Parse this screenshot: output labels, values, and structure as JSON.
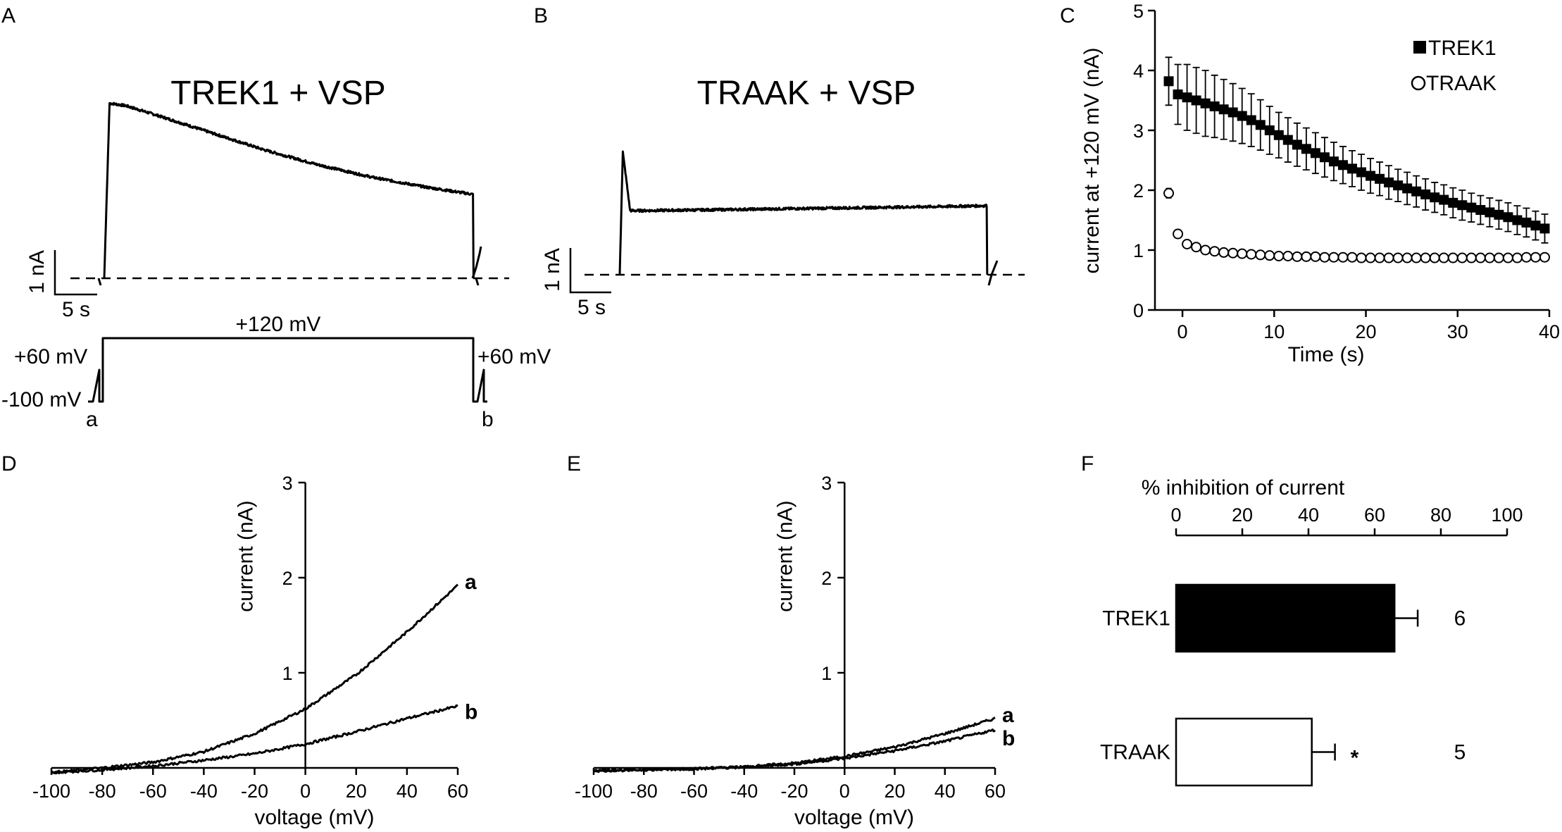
{
  "chart_data": [
    {
      "panel": "A",
      "type": "line",
      "title": "TREK1 + VSP",
      "scale_bar": {
        "current": "1 nA",
        "time": "5 s"
      },
      "protocol": {
        "label_main": "+120 mV",
        "label_pre": "+60 mV",
        "label_post": "+60 mV",
        "label_hold": "-100 mV",
        "marker_a": "a",
        "marker_b": "b"
      },
      "trace": {
        "t_s": [
          0,
          0.5,
          2,
          5,
          10,
          15,
          20,
          25,
          30,
          34.5
        ],
        "i_nA": [
          0,
          3.55,
          3.5,
          3.3,
          2.95,
          2.6,
          2.3,
          2.05,
          1.85,
          1.7
        ]
      }
    },
    {
      "panel": "B",
      "type": "line",
      "title": "TRAAK + VSP",
      "scale_bar": {
        "current": "1 nA",
        "time": "5 s"
      },
      "trace": {
        "t_s": [
          0,
          0.3,
          1,
          2,
          10,
          20,
          30,
          35.5
        ],
        "i_nA": [
          0,
          2.5,
          1.3,
          1.3,
          1.32,
          1.35,
          1.38,
          1.4
        ]
      }
    },
    {
      "panel": "C",
      "type": "scatter",
      "xlabel": "Time (s)",
      "ylabel": "current at +120 mV (nA)",
      "xlim": [
        -3,
        40
      ],
      "ylim": [
        0,
        5
      ],
      "xticks": [
        "0",
        "10",
        "20",
        "30",
        "40"
      ],
      "yticks": [
        "0",
        "1",
        "2",
        "3",
        "4",
        "5"
      ],
      "series": [
        {
          "name": "TREK1",
          "marker": "filled-square",
          "x": [
            -1.5,
            -0.5,
            0.5,
            1.5,
            2.5,
            3.5,
            4.5,
            5.5,
            6.5,
            7.5,
            8.5,
            9.5,
            10.5,
            11.5,
            12.5,
            13.5,
            14.5,
            15.5,
            16.5,
            17.5,
            18.5,
            19.5,
            20.5,
            21.5,
            22.5,
            23.5,
            24.5,
            25.5,
            26.5,
            27.5,
            28.5,
            29.5,
            30.5,
            31.5,
            32.5,
            33.5,
            34.5,
            35.5,
            36.5,
            37.5,
            38.5,
            39.5
          ],
          "y": [
            3.82,
            3.6,
            3.55,
            3.5,
            3.45,
            3.4,
            3.35,
            3.3,
            3.24,
            3.17,
            3.09,
            3.0,
            2.92,
            2.84,
            2.76,
            2.69,
            2.62,
            2.55,
            2.48,
            2.42,
            2.36,
            2.3,
            2.24,
            2.19,
            2.13,
            2.08,
            2.03,
            1.98,
            1.93,
            1.88,
            1.84,
            1.79,
            1.75,
            1.71,
            1.67,
            1.63,
            1.59,
            1.55,
            1.5,
            1.46,
            1.41,
            1.36
          ],
          "err": [
            0.4,
            0.5,
            0.55,
            0.55,
            0.55,
            0.52,
            0.5,
            0.48,
            0.46,
            0.44,
            0.42,
            0.4,
            0.38,
            0.37,
            0.36,
            0.35,
            0.34,
            0.33,
            0.32,
            0.31,
            0.3,
            0.3,
            0.29,
            0.28,
            0.28,
            0.27,
            0.27,
            0.26,
            0.26,
            0.25,
            0.25,
            0.25,
            0.25,
            0.24,
            0.24,
            0.24,
            0.24,
            0.24,
            0.24,
            0.24,
            0.24,
            0.24
          ]
        },
        {
          "name": "TRAAK",
          "marker": "open-circle",
          "x": [
            -1.5,
            -0.5,
            0.5,
            1.5,
            2.5,
            3.5,
            4.5,
            5.5,
            6.5,
            7.5,
            8.5,
            9.5,
            10.5,
            11.5,
            12.5,
            13.5,
            14.5,
            15.5,
            16.5,
            17.5,
            18.5,
            19.5,
            20.5,
            21.5,
            22.5,
            23.5,
            24.5,
            25.5,
            26.5,
            27.5,
            28.5,
            29.5,
            30.5,
            31.5,
            32.5,
            33.5,
            34.5,
            35.5,
            36.5,
            37.5,
            38.5,
            39.5
          ],
          "y": [
            1.95,
            1.27,
            1.1,
            1.05,
            1.0,
            0.98,
            0.96,
            0.95,
            0.94,
            0.93,
            0.92,
            0.91,
            0.9,
            0.9,
            0.89,
            0.89,
            0.89,
            0.88,
            0.88,
            0.88,
            0.88,
            0.87,
            0.87,
            0.87,
            0.87,
            0.87,
            0.87,
            0.87,
            0.87,
            0.87,
            0.87,
            0.87,
            0.87,
            0.87,
            0.87,
            0.87,
            0.87,
            0.87,
            0.87,
            0.88,
            0.88,
            0.88
          ],
          "err": [
            0.08,
            0.06,
            0.04,
            0.03,
            0.03,
            0.03,
            0.03,
            0.03,
            0.03,
            0.03,
            0.03,
            0.03,
            0.03,
            0.03,
            0.03,
            0.03,
            0.03,
            0.03,
            0.03,
            0.03,
            0.03,
            0.03,
            0.03,
            0.03,
            0.03,
            0.03,
            0.03,
            0.03,
            0.03,
            0.03,
            0.03,
            0.03,
            0.03,
            0.03,
            0.03,
            0.03,
            0.03,
            0.03,
            0.03,
            0.03,
            0.03,
            0.03
          ]
        }
      ]
    },
    {
      "panel": "D",
      "type": "line",
      "xlabel": "voltage (mV)",
      "ylabel": "current (nA)",
      "xlim": [
        -100,
        60
      ],
      "ylim": [
        0,
        3
      ],
      "xticks": [
        "-100",
        "-80",
        "-60",
        "-40",
        "-20",
        "0",
        "20",
        "40",
        "60"
      ],
      "yticks": [
        "1",
        "2",
        "3"
      ],
      "series": [
        {
          "name": "a",
          "x": [
            -100,
            -80,
            -60,
            -40,
            -20,
            0,
            20,
            40,
            60
          ],
          "y": [
            -0.05,
            0.0,
            0.06,
            0.17,
            0.36,
            0.62,
            0.98,
            1.43,
            1.92
          ]
        },
        {
          "name": "b",
          "x": [
            -100,
            -80,
            -60,
            -40,
            -20,
            0,
            20,
            40,
            60
          ],
          "y": [
            -0.05,
            -0.02,
            0.02,
            0.08,
            0.15,
            0.25,
            0.38,
            0.52,
            0.65
          ]
        }
      ]
    },
    {
      "panel": "E",
      "type": "line",
      "xlabel": "voltage (mV)",
      "ylabel": "current (nA)",
      "xlim": [
        -100,
        60
      ],
      "ylim": [
        0,
        3
      ],
      "xticks": [
        "-100",
        "-80",
        "-60",
        "-40",
        "-20",
        "0",
        "20",
        "40",
        "60"
      ],
      "yticks": [
        "1",
        "2",
        "3"
      ],
      "series": [
        {
          "name": "a",
          "x": [
            -100,
            -80,
            -60,
            -40,
            -20,
            0,
            20,
            40,
            60
          ],
          "y": [
            -0.03,
            -0.02,
            -0.01,
            0.01,
            0.05,
            0.12,
            0.22,
            0.36,
            0.52
          ]
        },
        {
          "name": "b",
          "x": [
            -100,
            -80,
            -60,
            -40,
            -20,
            0,
            20,
            40,
            60
          ],
          "y": [
            -0.03,
            -0.02,
            -0.01,
            0.01,
            0.04,
            0.1,
            0.18,
            0.28,
            0.4
          ]
        }
      ]
    },
    {
      "panel": "F",
      "type": "bar",
      "orientation": "horizontal",
      "xlabel": "% inhibition of current",
      "xlim": [
        0,
        100
      ],
      "xticks": [
        "0",
        "20",
        "40",
        "60",
        "80",
        "100"
      ],
      "categories": [
        "TREK1",
        "TRAAK"
      ],
      "values": [
        66,
        41
      ],
      "errors": [
        7,
        7
      ],
      "n": [
        "6",
        "5"
      ],
      "significance": [
        "",
        "*"
      ],
      "fills": [
        "#000000",
        "#ffffff"
      ]
    }
  ]
}
